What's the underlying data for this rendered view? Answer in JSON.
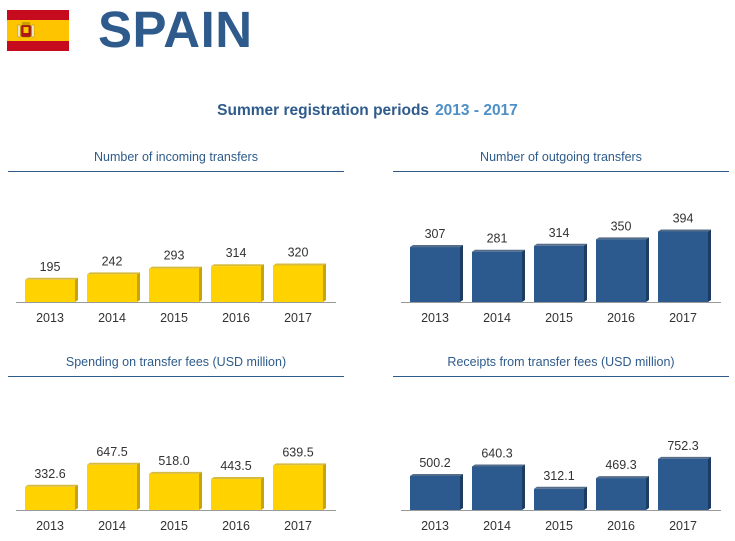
{
  "header": {
    "country": "SPAIN",
    "flag_icon": "spain-flag-icon",
    "subtitle": "Summer registration periods",
    "subtitle_years": "2013 - 2017"
  },
  "colors": {
    "brand_blue": "#2e5b8c",
    "accent_blue": "#4d8fc6",
    "yellow": "#ffd200",
    "yellow_side": "#c9a400",
    "bar_blue": "#2c5a8e",
    "bar_blue_side": "#1c3c62"
  },
  "chart_data": [
    {
      "type": "bar",
      "title": "Number of incoming transfers",
      "categories": [
        "2013",
        "2014",
        "2015",
        "2016",
        "2017"
      ],
      "values": [
        195,
        242,
        293,
        314,
        320
      ],
      "labels": [
        "195",
        "242",
        "293",
        "314",
        "320"
      ],
      "color": "yellow"
    },
    {
      "type": "bar",
      "title": "Number of outgoing transfers",
      "categories": [
        "2013",
        "2014",
        "2015",
        "2016",
        "2017"
      ],
      "values": [
        307,
        281,
        314,
        350,
        394
      ],
      "labels": [
        "307",
        "281",
        "314",
        "350",
        "394"
      ],
      "color": "blue"
    },
    {
      "type": "bar",
      "title": "Spending on transfer fees (USD million)",
      "categories": [
        "2013",
        "2014",
        "2015",
        "2016",
        "2017"
      ],
      "values": [
        332.6,
        647.5,
        518.0,
        443.5,
        639.5
      ],
      "labels": [
        "332.6",
        "647.5",
        "518.0",
        "443.5",
        "639.5"
      ],
      "color": "yellow"
    },
    {
      "type": "bar",
      "title": "Receipts from transfer fees (USD million)",
      "categories": [
        "2013",
        "2014",
        "2015",
        "2016",
        "2017"
      ],
      "values": [
        500.2,
        640.3,
        312.1,
        469.3,
        752.3
      ],
      "labels": [
        "500.2",
        "640.3",
        "312.1",
        "469.3",
        "752.3"
      ],
      "color": "blue"
    }
  ]
}
